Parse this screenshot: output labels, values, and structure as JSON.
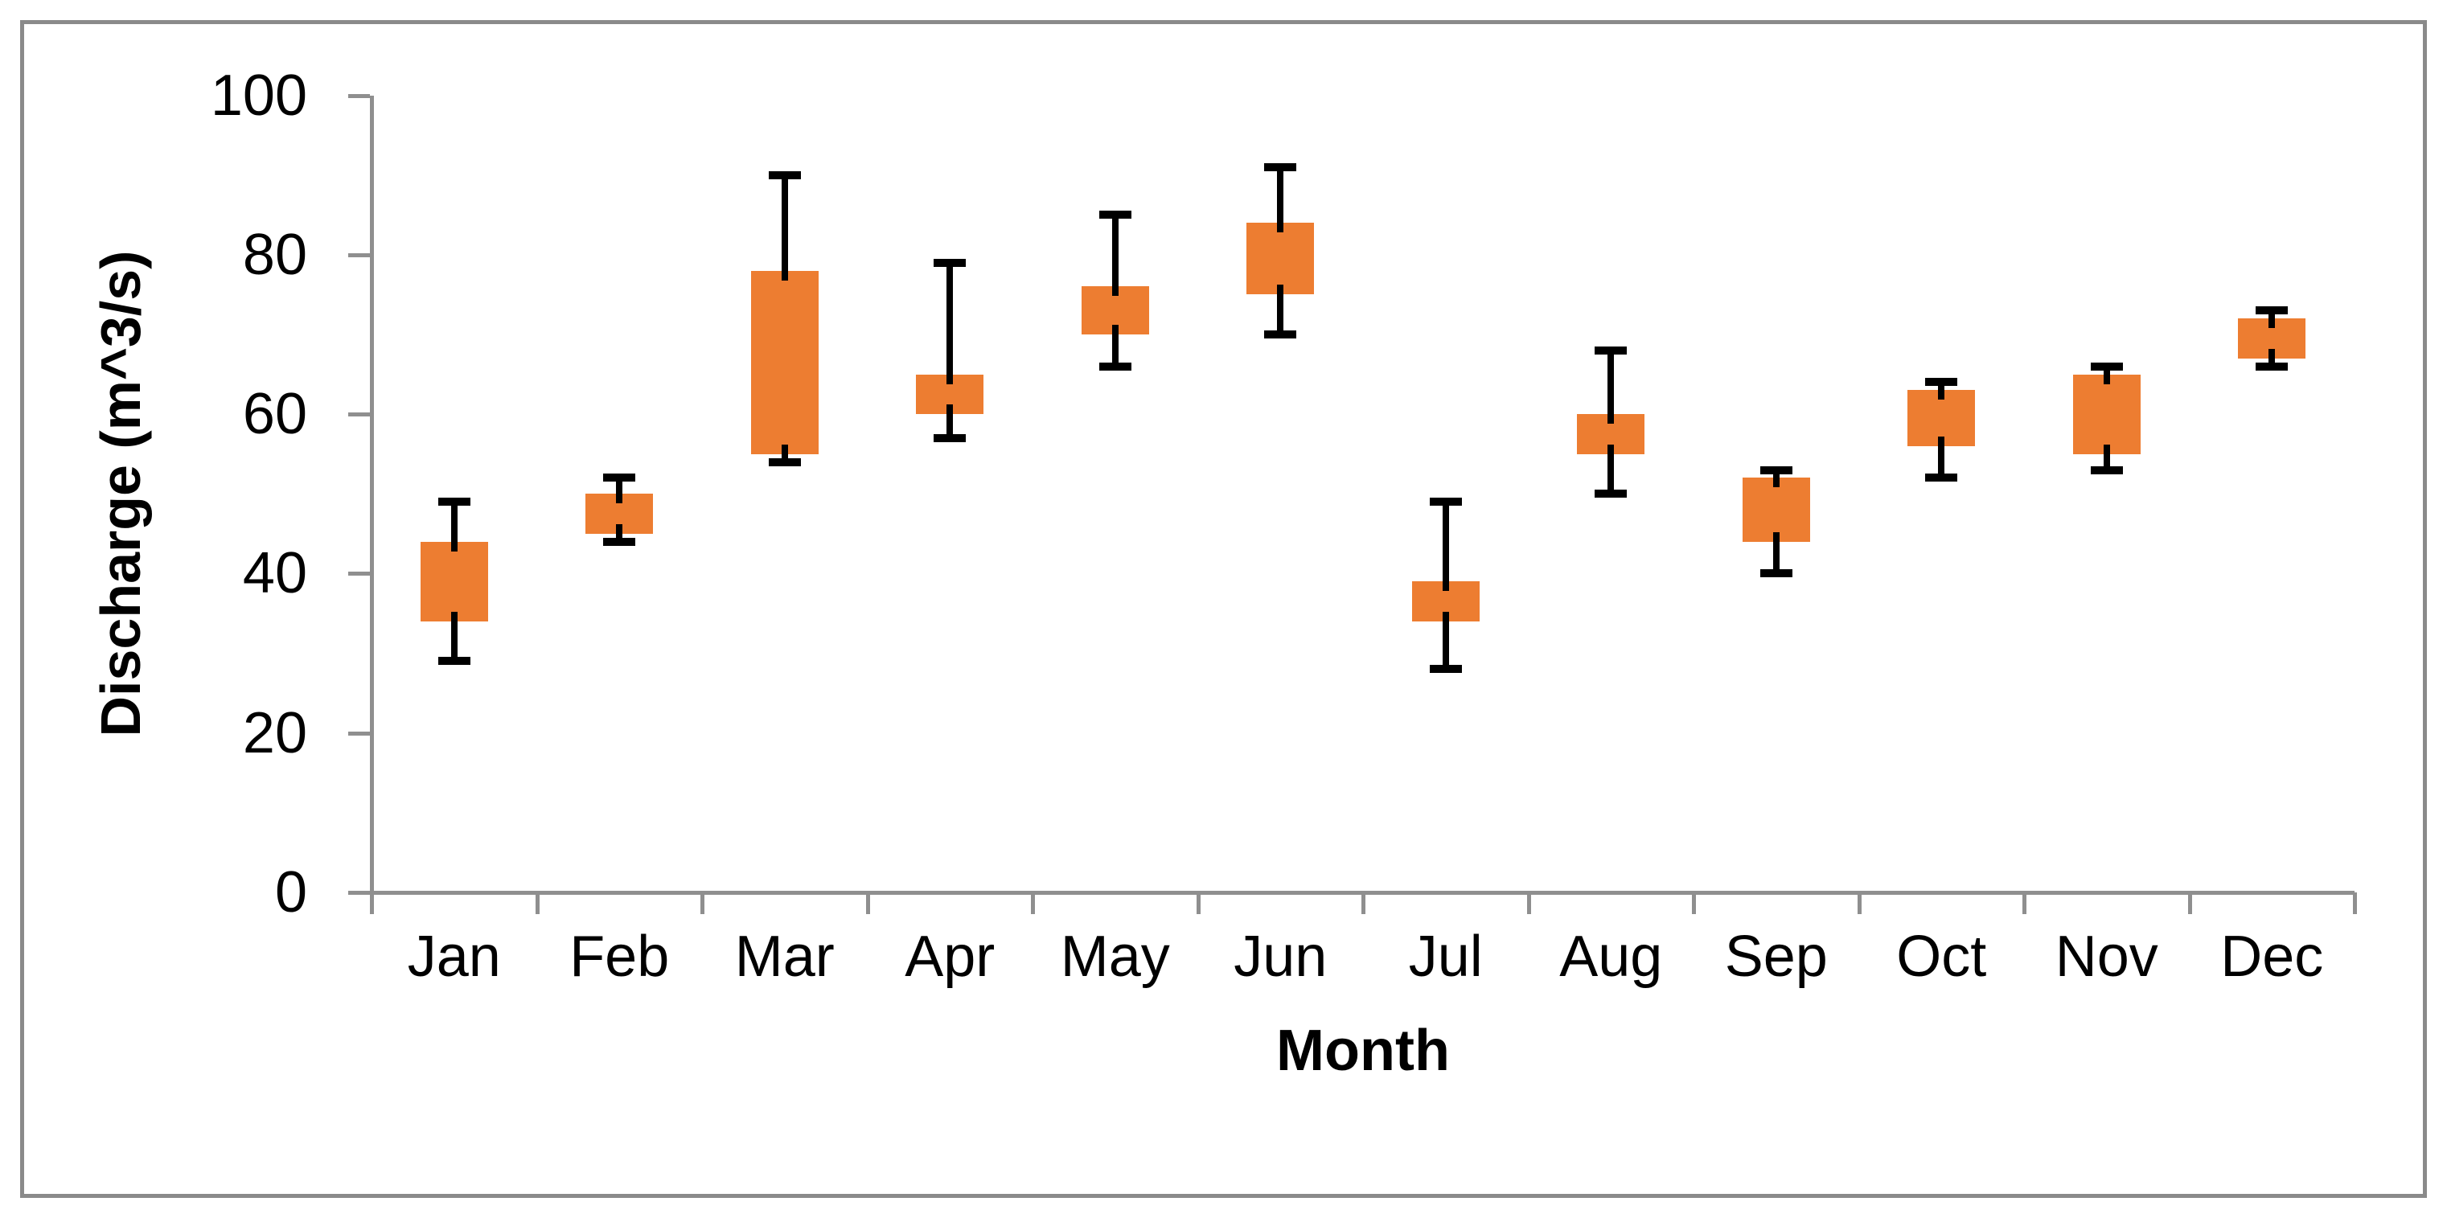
{
  "figure": {
    "background": "#ffffff",
    "border_color": "#8a8a8a"
  },
  "chart_data": {
    "type": "box-whisker",
    "title": "",
    "xlabel": "Month",
    "ylabel": "Discharge (m^3/s)",
    "ylim": [
      0,
      100
    ],
    "ytick_step": 20,
    "yticks": [
      0,
      20,
      40,
      60,
      80,
      100
    ],
    "grid": false,
    "legend": "none",
    "categories": [
      "Jan",
      "Feb",
      "Mar",
      "Apr",
      "May",
      "Jun",
      "Jul",
      "Aug",
      "Sep",
      "Oct",
      "Nov",
      "Dec"
    ],
    "series": [
      {
        "name": "Discharge",
        "boxes": [
          {
            "category": "Jan",
            "min": 29,
            "q1": 34,
            "q3": 44,
            "max": 49
          },
          {
            "category": "Feb",
            "min": 44,
            "q1": 45,
            "q3": 50,
            "max": 52
          },
          {
            "category": "Mar",
            "min": 54,
            "q1": 55,
            "q3": 78,
            "max": 90
          },
          {
            "category": "Apr",
            "min": 57,
            "q1": 60,
            "q3": 65,
            "max": 79
          },
          {
            "category": "May",
            "min": 66,
            "q1": 70,
            "q3": 76,
            "max": 85
          },
          {
            "category": "Jun",
            "min": 70,
            "q1": 75,
            "q3": 84,
            "max": 91
          },
          {
            "category": "Jul",
            "min": 28,
            "q1": 34,
            "q3": 39,
            "max": 49
          },
          {
            "category": "Aug",
            "min": 50,
            "q1": 55,
            "q3": 60,
            "max": 68
          },
          {
            "category": "Sep",
            "min": 40,
            "q1": 44,
            "q3": 52,
            "max": 53
          },
          {
            "category": "Oct",
            "min": 52,
            "q1": 56,
            "q3": 63,
            "max": 64
          },
          {
            "category": "Nov",
            "min": 53,
            "q1": 55,
            "q3": 65,
            "max": 66
          },
          {
            "category": "Dec",
            "min": 66,
            "q1": 67,
            "q3": 72,
            "max": 73
          }
        ]
      }
    ],
    "colors": {
      "box_fill": "#ED7D31",
      "whisker": "#000000",
      "axis": "#8f8f8f",
      "text": "#000000"
    }
  }
}
